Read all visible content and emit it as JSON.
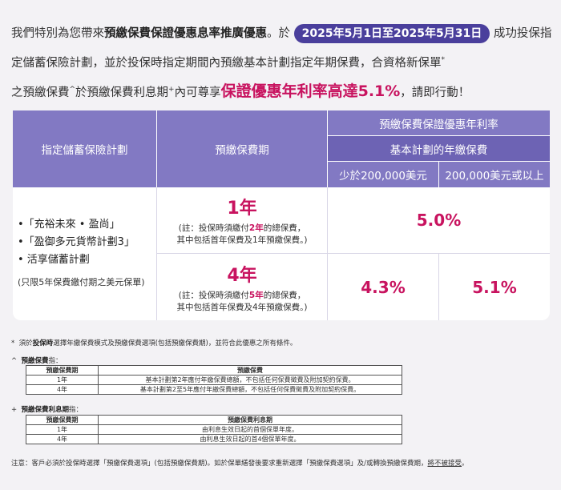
{
  "intro": {
    "p1": "我們特別為您帶來",
    "offer_name": "預繳保費保證優惠息率推廣優惠",
    "p2": "。於",
    "date_range": "2025年5月1日至2025年5月31日",
    "p3": "成功投保指定儲蓄保險計劃，並於投保時指定期間內預繳基本計劃指定年期保費，合資格新保單",
    "p4": "之預繳保費",
    "p5": "於預繳保費利息期",
    "p6": "內可尊享",
    "highlight": "保證優惠年利率高達5.1%",
    "p7": "，請即行動！",
    "mark_star": "*",
    "mark_caret": "^",
    "mark_plus": "+"
  },
  "table": {
    "col_plan": "指定儲蓄保險計劃",
    "col_period": "預繳保費期",
    "col_rate": "預繳保費保證優惠年利率",
    "col_annual": "基本計劃的年繳保費",
    "col_low": "少於200,000美元",
    "col_high": "200,000美元或以上",
    "plans": [
      "•「充裕未來 • 盈尚」",
      "•「盈御多元貨幣計劃3」",
      "•  活享儲蓄計劃"
    ],
    "plans_note": "(只限5年保費繳付期之美元保單)",
    "row1": {
      "year": "1年",
      "note_a": "(註：投保時須繳付",
      "note_em": "2年",
      "note_b": "的總保費，",
      "note_c": "其中包括首年保費及1年預繳保費。)",
      "rate_all": "5.0%"
    },
    "row2": {
      "year": "4年",
      "note_a": "(註：投保時須繳付",
      "note_em": "5年",
      "note_b": "的總保費，",
      "note_c": "其中包括首年保費及4年預繳保費。)",
      "rate_low": "4.3%",
      "rate_high": "5.1%"
    }
  },
  "footnotes": {
    "f1_mark": "*",
    "f1_a": "須於",
    "f1_bold": "投保時",
    "f1_b": "選擇年繳保費模式及預繳保費選項(包括預繳保費期)，並符合此優惠之所有條件。",
    "f2_mark": "^",
    "f2_label": "預繳保費",
    "f2_suffix": "指：",
    "t1": {
      "h1": "預繳保費期",
      "h2": "預繳保費",
      "rows": [
        [
          "1年",
          "基本計劃第2年應付年繳保費總額，不包括任何保費徵費及附加契約保費。"
        ],
        [
          "4年",
          "基本計劃第2至5年應付年繳保費總額，不包括任何保費徵費及附加契約保費。"
        ]
      ]
    },
    "f3_mark": "+",
    "f3_label": "預繳保費利息期",
    "f3_suffix": "指：",
    "t2": {
      "h1": "預繳保費期",
      "h2": "預繳保費利息期",
      "rows": [
        [
          "1年",
          "由利息生效日起的首個保單年度。"
        ],
        [
          "4年",
          "由利息生效日起的首4個保單年度。"
        ]
      ]
    }
  },
  "footer": {
    "text": "注意：客戶必須於投保時選擇「預繳保費選項」(包括預繳保費期)。如於保單繕發後要求重新選擇「預繳保費選項」及/或轉換預繳保費期，",
    "underlined": "將不被接受",
    "end": "。"
  }
}
